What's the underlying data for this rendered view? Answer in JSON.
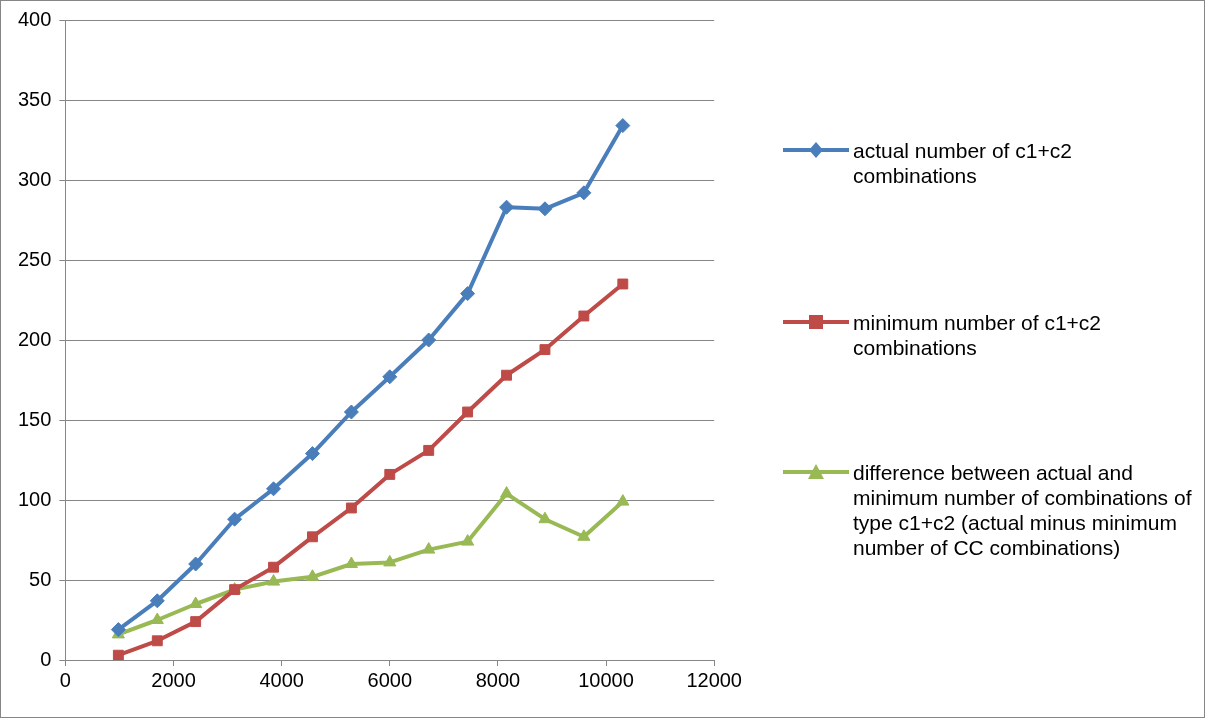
{
  "chart_data": {
    "type": "line",
    "x": [
      980,
      1700,
      2410,
      3130,
      3850,
      4570,
      5290,
      6000,
      6720,
      7440,
      8160,
      8870,
      9590,
      10310
    ],
    "series": [
      {
        "name": "actual number of c1+c2 combinations",
        "color": "#4a7ebb",
        "marker": "diamond",
        "values": [
          19,
          37,
          60,
          88,
          107,
          129,
          155,
          177,
          200,
          229,
          283,
          282,
          292,
          334
        ]
      },
      {
        "name": "minimum number of c1+c2 combinations",
        "color": "#be4b48",
        "marker": "square",
        "values": [
          3,
          12,
          24,
          44,
          58,
          77,
          95,
          116,
          131,
          155,
          178,
          194,
          215,
          235
        ]
      },
      {
        "name": "difference between actual and minimum number of combinations of type c1+c2 (actual minus minimum number of CC combinations)",
        "color": "#98b954",
        "marker": "triangle",
        "values": [
          16,
          25,
          35,
          44,
          49,
          52,
          60,
          61,
          69,
          74,
          104,
          88,
          77,
          99
        ]
      }
    ],
    "xlim": [
      0,
      12000
    ],
    "xticks": [
      0,
      2000,
      4000,
      6000,
      8000,
      10000,
      12000
    ],
    "ylim": [
      0,
      400
    ],
    "yticks": [
      0,
      50,
      100,
      150,
      200,
      250,
      300,
      350,
      400
    ],
    "grid": "y",
    "legend": "right",
    "line_style": "solid"
  }
}
